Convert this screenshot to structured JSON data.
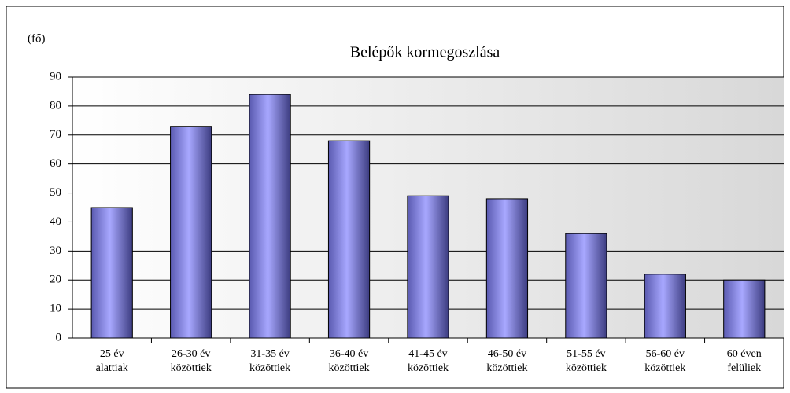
{
  "chart_data": {
    "type": "bar",
    "title": "Belépők kormegoszlása",
    "y_label": "(fő)",
    "categories": [
      "25 év\nalattiak",
      "26-30 év\nközöttiek",
      "31-35 év\nközöttiek",
      "36-40 év\nközöttiek",
      "41-45 év\nközöttiek",
      "46-50 év\nközöttiek",
      "51-55 év\nközöttiek",
      "56-60 év\nközöttiek",
      "60 éven\nfelüliek"
    ],
    "values": [
      45,
      73,
      84,
      68,
      49,
      48,
      36,
      22,
      20
    ],
    "color": "#8c8cf0",
    "ylim": [
      0,
      90
    ],
    "yticks": [
      0,
      10,
      20,
      30,
      40,
      50,
      60,
      70,
      80,
      90
    ],
    "grid": true
  }
}
